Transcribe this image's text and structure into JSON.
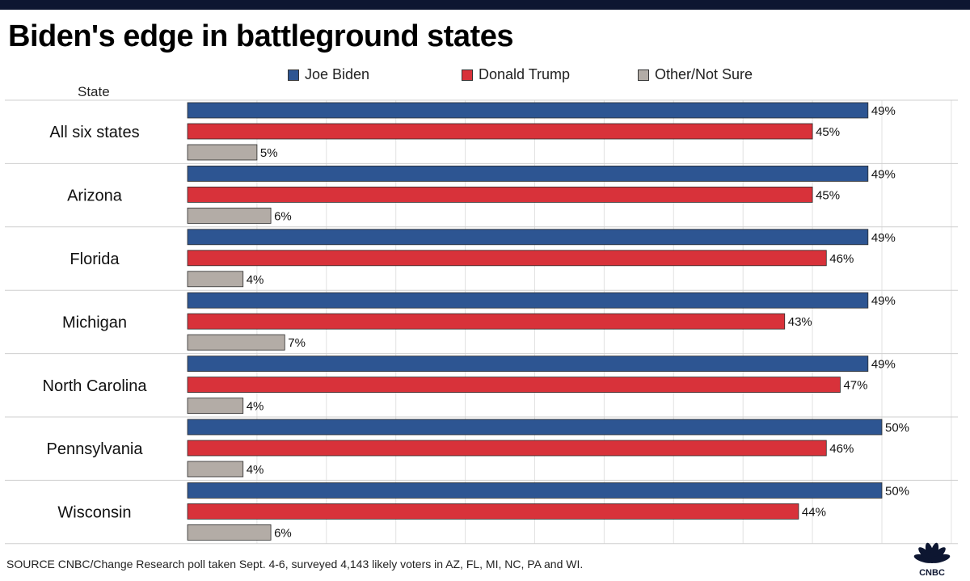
{
  "page": {
    "title": "Biden's edge in battleground states",
    "state_header": "State",
    "source": "SOURCE CNBC/Change Research poll taken Sept. 4-6, surveyed 4,143 likely voters in AZ, FL, MI, NC, PA and WI.",
    "logo_text": "CNBC"
  },
  "legend": [
    {
      "label": "Joe Biden",
      "color": "#2d5592"
    },
    {
      "label": "Donald Trump",
      "color": "#d8323a"
    },
    {
      "label": "Other/Not Sure",
      "color": "#b3aca6"
    }
  ],
  "chart_data": {
    "type": "bar",
    "orientation": "horizontal",
    "categories": [
      "All six states",
      "Arizona",
      "Florida",
      "Michigan",
      "North Carolina",
      "Pennsylvania",
      "Wisconsin"
    ],
    "series": [
      {
        "name": "Joe Biden",
        "color": "#2d5592",
        "values": [
          49,
          49,
          49,
          49,
          49,
          50,
          50
        ]
      },
      {
        "name": "Donald Trump",
        "color": "#d8323a",
        "values": [
          45,
          45,
          46,
          43,
          47,
          46,
          44
        ]
      },
      {
        "name": "Other/Not Sure",
        "color": "#b3aca6",
        "values": [
          5,
          6,
          4,
          7,
          4,
          4,
          6
        ]
      }
    ],
    "value_suffix": "%",
    "xlim": [
      0,
      55
    ],
    "grid": true,
    "legend_position": "top"
  }
}
